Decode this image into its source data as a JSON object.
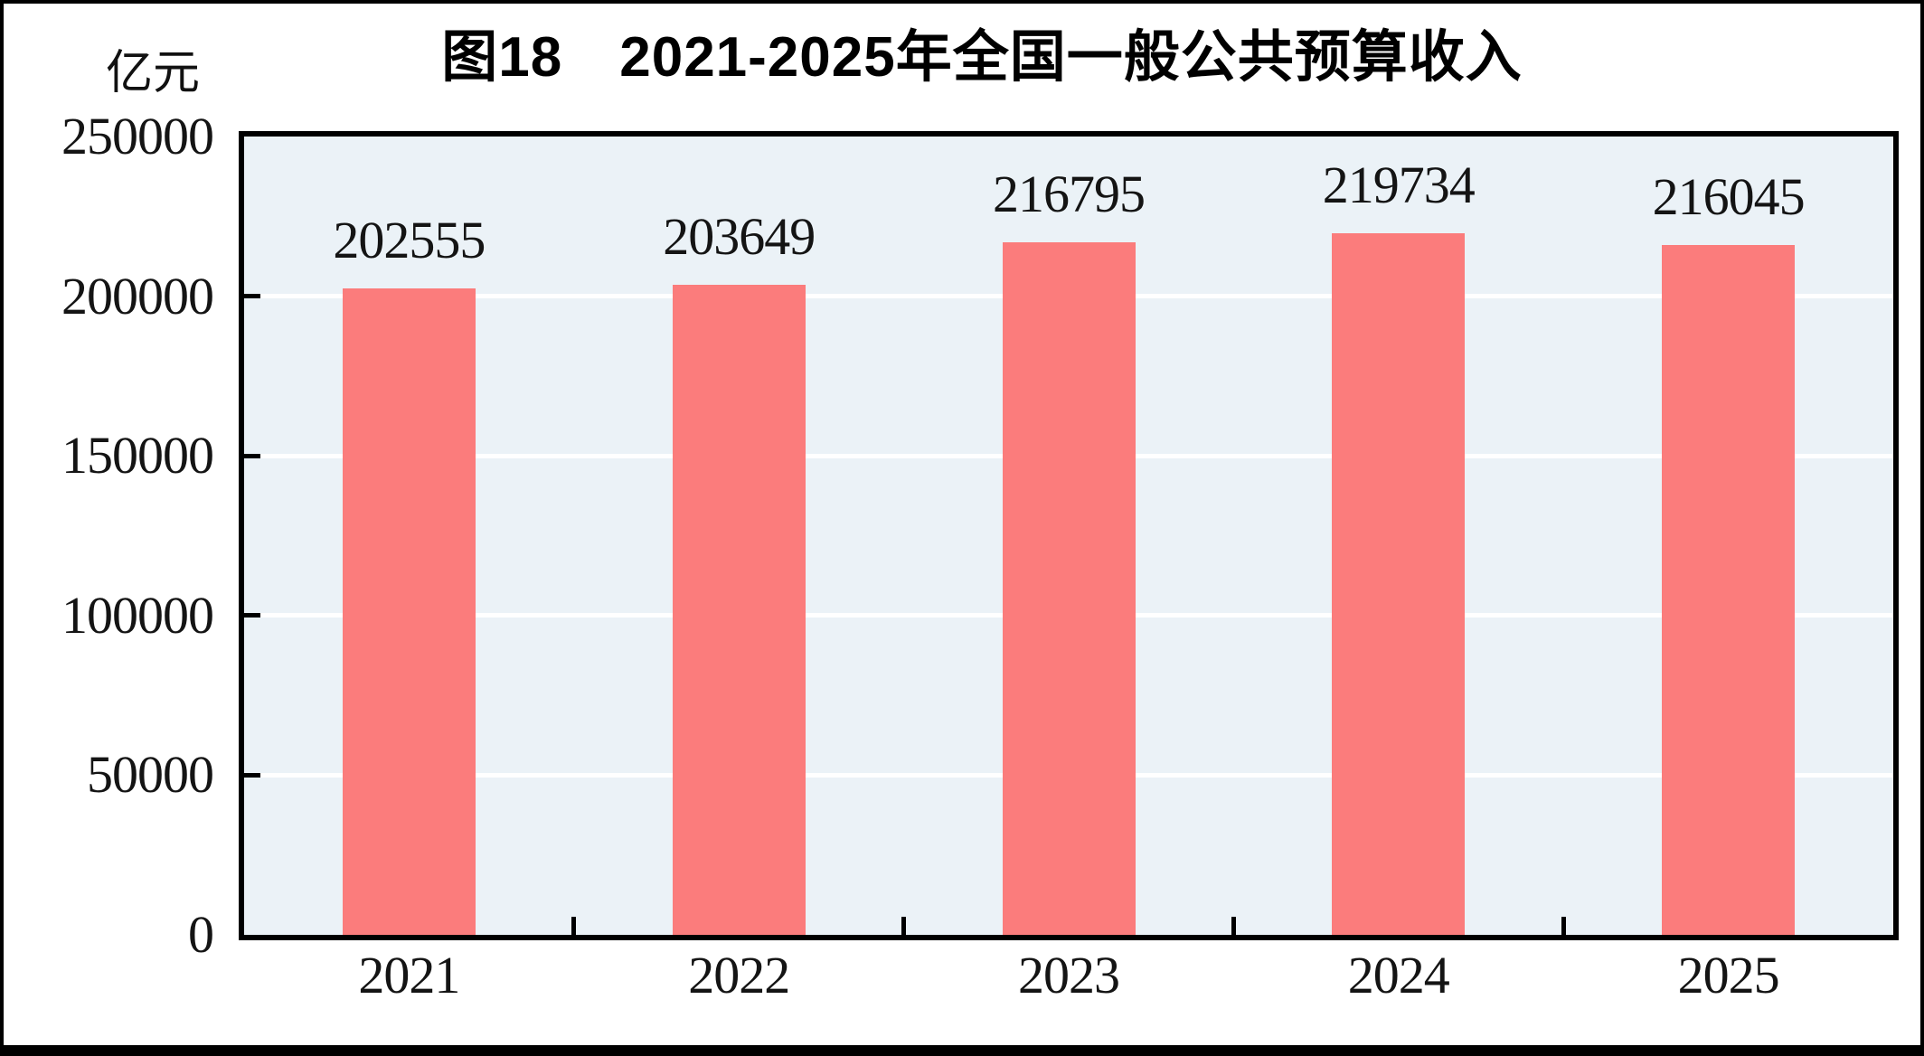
{
  "figure": {
    "title": "图18　2021-2025年全国一般公共预算收入",
    "unit_label": "亿元"
  },
  "chart_data": {
    "type": "bar",
    "title": "图18　2021-2025年全国一般公共预算收入",
    "ylabel": "亿元",
    "xlabel": "",
    "categories": [
      "2021",
      "2022",
      "2023",
      "2024",
      "2025"
    ],
    "values": [
      202555,
      203649,
      216795,
      219734,
      216045
    ],
    "ylim": [
      0,
      250000
    ],
    "yticks": [
      0,
      50000,
      100000,
      150000,
      200000,
      250000
    ],
    "grid": "horizontal-white-behind-bars",
    "legend_position": "none",
    "data_labels_shown": true,
    "colors": {
      "bar": "#FB7C7C",
      "plot_background": "#EBF2F7",
      "gridline": "#FFFFFF",
      "axis_frame": "#000000",
      "text": "#000000"
    }
  }
}
